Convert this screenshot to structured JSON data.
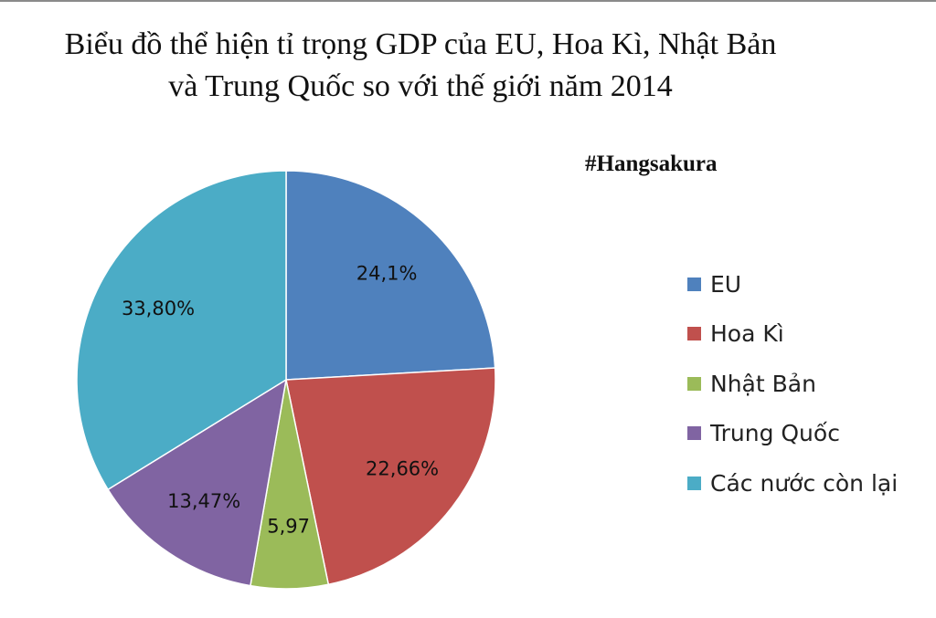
{
  "chart_data": {
    "type": "pie",
    "title_line1": "Biểu đồ thể hiện tỉ trọng GDP của EU, Hoa Kì, Nhật Bản",
    "title_line2": "và Trung  Quốc so với thế giới năm  2014",
    "watermark": "#Hangsakura",
    "start_angle_deg": 0,
    "direction": "clockwise",
    "legend_position": "right",
    "slices": [
      {
        "name": "EU",
        "value": 24.1,
        "label": "24,1%",
        "color": "#4f81bd"
      },
      {
        "name": "Hoa Kì",
        "value": 22.66,
        "label": "22,66%",
        "color": "#c0504d"
      },
      {
        "name": "Nhật Bản",
        "value": 5.97,
        "label": "5,97",
        "color": "#9bbb59"
      },
      {
        "name": "Trung  Quốc",
        "value": 13.47,
        "label": "13,47%",
        "color": "#8064a2"
      },
      {
        "name": "Các nước còn lại",
        "value": 33.8,
        "label": "33,80%",
        "color": "#4bacc6"
      }
    ]
  }
}
